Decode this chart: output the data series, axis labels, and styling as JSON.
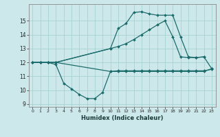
{
  "xlabel": "Humidex (Indice chaleur)",
  "bg_color": "#cde8ea",
  "grid_color": "#9ecece",
  "line_color": "#1a6b6b",
  "xlim": [
    -0.5,
    23.5
  ],
  "ylim": [
    8.8,
    16.2
  ],
  "yticks": [
    9,
    10,
    11,
    12,
    13,
    14,
    15
  ],
  "xticks": [
    0,
    1,
    2,
    3,
    4,
    5,
    6,
    7,
    8,
    9,
    10,
    11,
    12,
    13,
    14,
    15,
    16,
    17,
    18,
    19,
    20,
    21,
    22,
    23
  ],
  "line1_x": [
    0,
    1,
    2,
    3,
    4,
    5,
    6,
    7,
    8,
    9,
    10,
    11,
    12,
    13,
    14,
    15,
    16,
    17,
    18,
    19,
    20,
    21,
    22,
    23
  ],
  "line1_y": [
    12.0,
    12.0,
    12.0,
    11.85,
    10.5,
    10.1,
    9.7,
    9.4,
    9.4,
    9.85,
    11.35,
    11.4,
    11.4,
    11.4,
    11.4,
    11.4,
    11.4,
    11.4,
    11.4,
    11.4,
    11.4,
    11.4,
    11.4,
    11.5
  ],
  "line2_x": [
    0,
    1,
    2,
    3,
    10,
    11,
    12,
    13,
    14,
    15,
    16,
    17,
    18,
    19,
    20,
    21,
    22
  ],
  "line2_y": [
    12.0,
    12.0,
    12.0,
    12.0,
    13.0,
    13.15,
    13.35,
    13.65,
    14.0,
    14.35,
    14.7,
    15.0,
    13.85,
    12.4,
    12.35,
    12.35,
    12.4
  ],
  "line3_x": [
    0,
    1,
    2,
    3,
    10,
    11,
    12,
    13,
    14,
    15,
    16,
    17,
    18,
    19,
    20,
    21,
    22,
    23
  ],
  "line3_y": [
    12.0,
    12.0,
    12.0,
    12.0,
    13.0,
    14.45,
    14.8,
    15.6,
    15.65,
    15.5,
    15.4,
    15.4,
    15.4,
    13.85,
    12.4,
    12.35,
    12.4,
    11.55
  ],
  "line4_x": [
    0,
    1,
    2,
    3,
    10,
    11,
    12,
    13,
    14,
    15,
    16,
    17,
    18,
    19,
    20,
    21,
    22,
    23
  ],
  "line4_y": [
    12.0,
    12.0,
    12.0,
    12.0,
    11.35,
    11.35,
    11.35,
    11.35,
    11.35,
    11.35,
    11.35,
    11.35,
    11.35,
    11.35,
    11.35,
    11.35,
    11.35,
    11.55
  ]
}
